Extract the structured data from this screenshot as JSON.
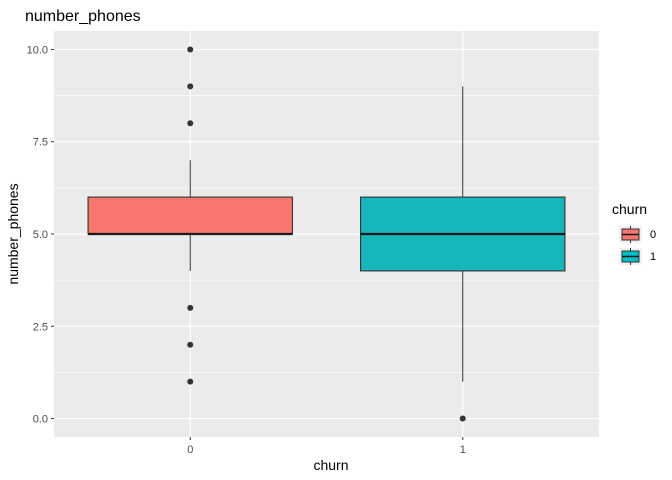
{
  "chart_data": {
    "type": "boxplot",
    "title": "number_phones",
    "xlabel": "churn",
    "ylabel": "number_phones",
    "ylim": [
      -0.5,
      10.5
    ],
    "y_ticks": [
      "0.0",
      "2.5",
      "5.0",
      "7.5",
      "10.0"
    ],
    "y_tick_values": [
      0,
      2.5,
      5,
      7.5,
      10
    ],
    "categories": [
      "0",
      "1"
    ],
    "grid": true,
    "legend": {
      "title": "churn",
      "position": "right",
      "entries": [
        {
          "label": "0",
          "color": "#F8766D"
        },
        {
          "label": "1",
          "color": "#00BFC4"
        }
      ]
    },
    "boxes": [
      {
        "category": "0",
        "color": "#F8766D",
        "whisker_low": 4,
        "q1": 5,
        "median": 5,
        "q3": 6,
        "whisker_high": 7,
        "outliers": [
          1,
          2,
          3,
          8,
          9,
          10
        ]
      },
      {
        "category": "1",
        "color": "#16B6BB",
        "whisker_low": 1,
        "q1": 4,
        "median": 5,
        "q3": 6,
        "whisker_high": 9,
        "outliers": [
          0
        ]
      }
    ]
  }
}
